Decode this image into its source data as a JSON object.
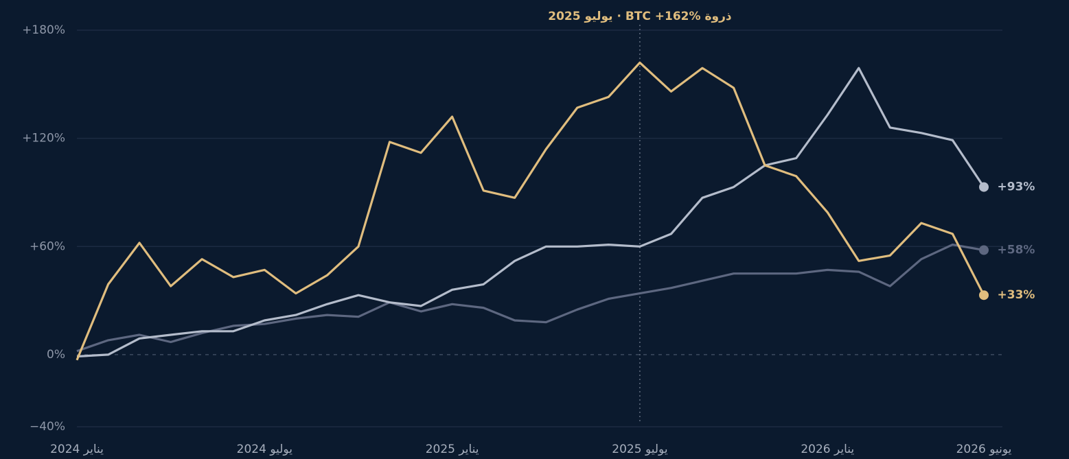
{
  "chart_data": {
    "type": "line",
    "annotation": "يوليو 2025 · BTC +162% ذروة",
    "categories": [
      "يناير 2024",
      null,
      null,
      null,
      null,
      null,
      "يوليو 2024",
      null,
      null,
      null,
      null,
      null,
      "يناير 2025",
      null,
      null,
      null,
      null,
      null,
      "يوليو 2025",
      null,
      null,
      null,
      null,
      null,
      "يناير 2026",
      null,
      null,
      null,
      null,
      "يونيو 2026"
    ],
    "ylim": [
      -40,
      180
    ],
    "yticks": [
      {
        "value": 180,
        "label": "+180%"
      },
      {
        "value": 120,
        "label": "+120%"
      },
      {
        "value": 60,
        "label": "+60%"
      },
      {
        "value": 0,
        "label": "0%"
      },
      {
        "value": -40,
        "label": "−40%"
      }
    ],
    "grid": true,
    "series": [
      {
        "color": "#e0bd7e",
        "end_label": "+33%",
        "values": [
          -3,
          39,
          62,
          38,
          53,
          43,
          47,
          34,
          44,
          60,
          118,
          112,
          132,
          91,
          87,
          114,
          137,
          143,
          162,
          146,
          159,
          148,
          105,
          99,
          79,
          52,
          55,
          73,
          67,
          33
        ]
      },
      {
        "color": "#b4bccb",
        "end_label": "+93%",
        "values": [
          -1,
          0,
          9,
          11,
          13,
          13,
          19,
          22,
          28,
          33,
          29,
          27,
          36,
          39,
          52,
          60,
          60,
          61,
          60,
          67,
          87,
          93,
          105,
          109,
          133,
          159,
          126,
          123,
          119,
          93
        ]
      },
      {
        "color": "#5d6780",
        "end_label": "+58%",
        "values": [
          2,
          8,
          11,
          7,
          12,
          16,
          17,
          20,
          22,
          21,
          29,
          24,
          28,
          26,
          19,
          18,
          25,
          31,
          34,
          37,
          41,
          45,
          45,
          45,
          47,
          46,
          38,
          53,
          61,
          58
        ]
      }
    ]
  }
}
